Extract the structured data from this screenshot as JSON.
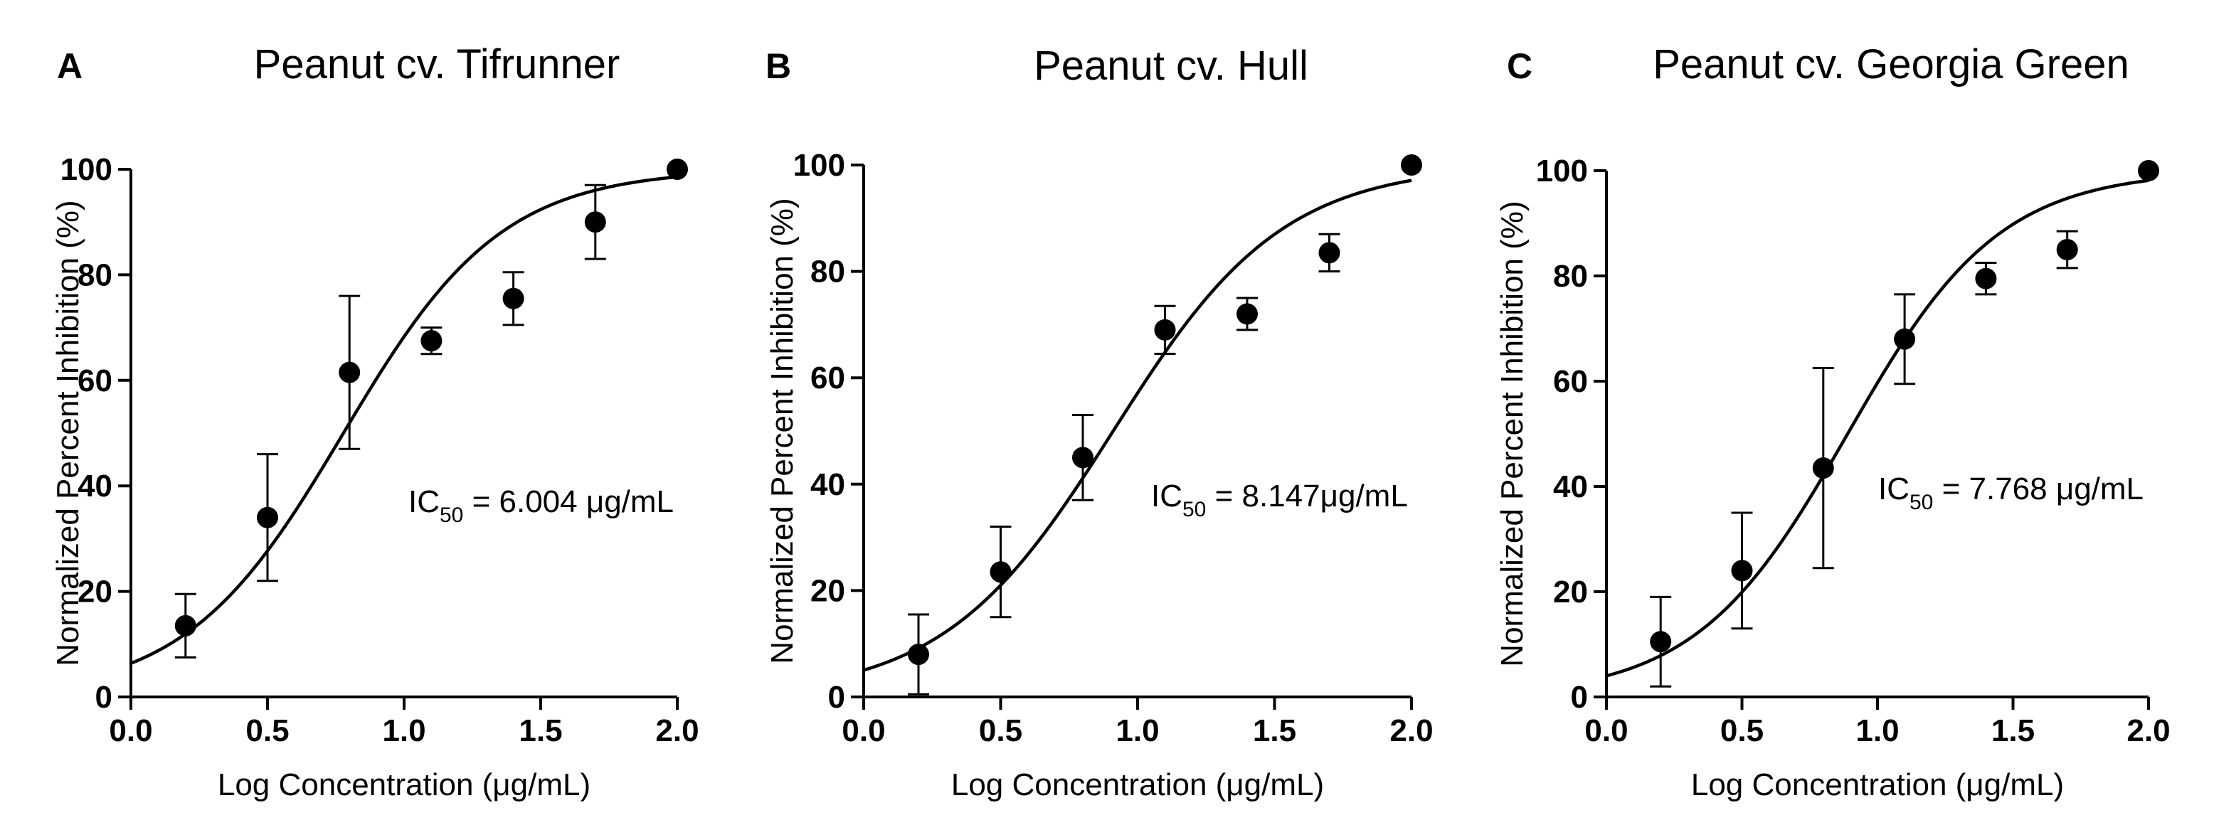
{
  "chart_data": [
    {
      "type": "scatter",
      "panel": "A",
      "title": "Peanut cv. Tifrunner",
      "xlabel": "Log Concentration (μg/mL)",
      "ylabel": "Normalized Percent Inhibition (%)",
      "xlim": [
        0.0,
        2.0
      ],
      "ylim": [
        0,
        100
      ],
      "xticks": [
        "0.0",
        "0.5",
        "1.0",
        "1.5",
        "2.0"
      ],
      "yticks": [
        "0",
        "20",
        "40",
        "60",
        "80",
        "100"
      ],
      "x": [
        0.2,
        0.5,
        0.8,
        1.1,
        1.4,
        1.7,
        2.0
      ],
      "y": [
        13.5,
        34,
        61.5,
        67.5,
        75.5,
        90,
        100
      ],
      "error": [
        6,
        12,
        14.5,
        2.5,
        5,
        7,
        0
      ],
      "fit": {
        "bottom": 0,
        "top": 100,
        "logIC50": 0.778,
        "hill": 1.5
      },
      "ic50": {
        "prefix": "IC",
        "subscript": "50",
        "suffix": " = 6.004 μg/mL"
      }
    },
    {
      "type": "scatter",
      "panel": "B",
      "title": "Peanut cv. Hull",
      "xlabel": "Log Concentration (μg/mL)",
      "ylabel": "Normalized Percent Inhibition (%)",
      "xlim": [
        0.0,
        2.0
      ],
      "ylim": [
        0,
        100
      ],
      "xticks": [
        "0.0",
        "0.5",
        "1.0",
        "1.5",
        "2.0"
      ],
      "yticks": [
        "0",
        "20",
        "40",
        "60",
        "80",
        "100"
      ],
      "x": [
        0.2,
        0.5,
        0.8,
        1.1,
        1.4,
        1.7,
        2.0
      ],
      "y": [
        8,
        23.5,
        45,
        69,
        72,
        83.5,
        100
      ],
      "error": [
        7.5,
        8.5,
        8,
        4.5,
        3,
        3.5,
        0
      ],
      "fit": {
        "bottom": 0,
        "top": 100,
        "logIC50": 0.911,
        "hill": 1.4
      },
      "ic50": {
        "prefix": "IC",
        "subscript": "50",
        "suffix": " = 8.147μg/mL"
      }
    },
    {
      "type": "scatter",
      "panel": "C",
      "title": "Peanut cv. Georgia Green",
      "xlabel": "Log Concentration (μg/mL)",
      "ylabel": "Normalized Percent Inhibition (%)",
      "xlim": [
        0.0,
        2.0
      ],
      "ylim": [
        0,
        100
      ],
      "xticks": [
        "0.0",
        "0.5",
        "1.0",
        "1.5",
        "2.0"
      ],
      "yticks": [
        "0",
        "20",
        "40",
        "60",
        "80",
        "100"
      ],
      "x": [
        0.2,
        0.5,
        0.8,
        1.1,
        1.4,
        1.7,
        2.0
      ],
      "y": [
        10.5,
        24,
        43.5,
        68,
        79.5,
        85,
        100
      ],
      "error": [
        8.5,
        11,
        19,
        8.5,
        3,
        3.5,
        0
      ],
      "fit": {
        "bottom": 0,
        "top": 100,
        "logIC50": 0.89,
        "hill": 1.55
      },
      "ic50": {
        "prefix": "IC",
        "subscript": "50",
        "suffix": " = 7.768 μg/mL"
      }
    }
  ]
}
